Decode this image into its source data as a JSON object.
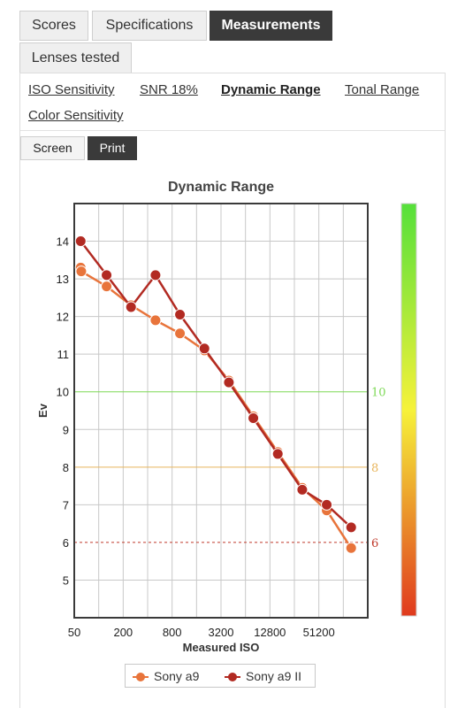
{
  "tabs": [
    {
      "label": "Scores",
      "active": false
    },
    {
      "label": "Specifications",
      "active": false
    },
    {
      "label": "Measurements",
      "active": true
    },
    {
      "label": "Lenses tested",
      "active": false
    }
  ],
  "subnav": [
    {
      "label": "ISO Sensitivity",
      "active": false
    },
    {
      "label": "SNR 18%",
      "active": false
    },
    {
      "label": "Dynamic Range",
      "active": true
    },
    {
      "label": "Tonal Range",
      "active": false
    },
    {
      "label": "Color Sensitivity",
      "active": false
    }
  ],
  "toggle": {
    "screen": "Screen",
    "print": "Print",
    "active": "print"
  },
  "chart_data": {
    "type": "line",
    "title": "Dynamic Range",
    "xlabel": "Measured ISO",
    "ylabel": "Ev",
    "x_scale": "log2",
    "x_ticks": [
      50,
      200,
      800,
      3200,
      12800,
      51200
    ],
    "x_tick_labels": [
      "50",
      "200",
      "800",
      "3200",
      "12800",
      "51200"
    ],
    "xlim": [
      50,
      204800
    ],
    "ylim": [
      4,
      15
    ],
    "y_ticks": [
      5,
      6,
      7,
      8,
      9,
      10,
      11,
      12,
      13,
      14
    ],
    "grid": true,
    "reference_lines": [
      {
        "value": 10,
        "label": "10",
        "color": "#7ed957",
        "style": "solid"
      },
      {
        "value": 8,
        "label": "8",
        "color": "#e8b45a",
        "style": "solid"
      },
      {
        "value": 6,
        "label": "6",
        "color": "#c0392b",
        "style": "dashed"
      }
    ],
    "colorbar": {
      "colors": [
        "#55e03a",
        "#f6f23a",
        "#e03a1e"
      ]
    },
    "legend_position": "bottom",
    "series": [
      {
        "name": "Sony a9",
        "color": "#e8743b",
        "points": [
          {
            "x": 60,
            "y": 13.3
          },
          {
            "x": 61,
            "y": 13.2
          },
          {
            "x": 125,
            "y": 12.8
          },
          {
            "x": 250,
            "y": 12.3
          },
          {
            "x": 500,
            "y": 11.9
          },
          {
            "x": 1000,
            "y": 11.55
          },
          {
            "x": 2000,
            "y": 11.1
          },
          {
            "x": 4000,
            "y": 10.3
          },
          {
            "x": 8000,
            "y": 9.35
          },
          {
            "x": 16000,
            "y": 8.4
          },
          {
            "x": 32000,
            "y": 7.45
          },
          {
            "x": 64000,
            "y": 6.85
          },
          {
            "x": 128000,
            "y": 5.85
          }
        ]
      },
      {
        "name": "Sony a9 II",
        "color": "#b22a22",
        "points": [
          {
            "x": 60,
            "y": 14.0
          },
          {
            "x": 125,
            "y": 13.1
          },
          {
            "x": 250,
            "y": 12.25
          },
          {
            "x": 500,
            "y": 13.1
          },
          {
            "x": 1000,
            "y": 12.05
          },
          {
            "x": 2000,
            "y": 11.15
          },
          {
            "x": 4000,
            "y": 10.25
          },
          {
            "x": 8000,
            "y": 9.3
          },
          {
            "x": 16000,
            "y": 8.35
          },
          {
            "x": 32000,
            "y": 7.4
          },
          {
            "x": 64000,
            "y": 7.0
          },
          {
            "x": 128000,
            "y": 6.4
          }
        ]
      }
    ]
  }
}
